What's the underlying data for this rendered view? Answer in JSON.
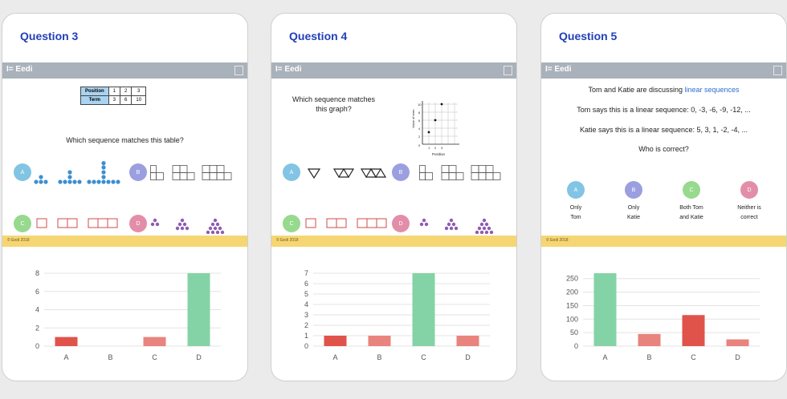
{
  "brand": "Eedi",
  "footer": "© Eedi 2018",
  "cards": [
    {
      "title": "Question 3",
      "table": {
        "row1_label": "Position",
        "row1": [
          "1",
          "2",
          "3"
        ],
        "row2_label": "Term",
        "row2": [
          "3",
          "6",
          "10"
        ]
      },
      "question": "Which sequence matches this table?",
      "options": [
        "A",
        "B",
        "C",
        "D"
      ]
    },
    {
      "title": "Question 4",
      "question_line1": "Which sequence matches",
      "question_line2": "this graph?",
      "graph": {
        "ylabel": "Value of term",
        "xlabel": "Position",
        "yticks": [
          "10",
          "8",
          "6",
          "4",
          "2",
          "0"
        ],
        "xticks": [
          "1",
          "2",
          "3"
        ]
      },
      "options": [
        "A",
        "B",
        "C",
        "D"
      ]
    },
    {
      "title": "Question 5",
      "intro_prefix": "Tom and Katie are discussing ",
      "intro_link": "linear sequences",
      "tom": "Tom says this is a linear sequence: 0, -3, -6, -9, -12, ...",
      "katie": "Katie says this is a linear sequence: 5, 3, 1, -2, -4, ...",
      "question": "Who is correct?",
      "options": [
        "A",
        "B",
        "C",
        "D"
      ],
      "answers": [
        {
          "l1": "Only",
          "l2": "Tom"
        },
        {
          "l1": "Only",
          "l2": "Katie"
        },
        {
          "l1": "Both Tom",
          "l2": "and Katie"
        },
        {
          "l1": "Neither is",
          "l2": "correct"
        }
      ]
    }
  ],
  "chart_data": [
    {
      "type": "bar",
      "categories": [
        "A",
        "B",
        "C",
        "D"
      ],
      "values": [
        1,
        0,
        1,
        8
      ],
      "yticks": [
        0,
        2,
        4,
        6,
        8
      ],
      "ylim": [
        0,
        8
      ],
      "colors": [
        "#e0534a",
        "#e0534a",
        "#e9837d",
        "#84d3a6"
      ],
      "grid": true
    },
    {
      "type": "bar",
      "categories": [
        "A",
        "B",
        "C",
        "D"
      ],
      "values": [
        1,
        1,
        7,
        1
      ],
      "yticks": [
        0,
        1,
        2,
        3,
        4,
        5,
        6,
        7
      ],
      "ylim": [
        0,
        7
      ],
      "colors": [
        "#e0534a",
        "#e9837d",
        "#84d3a6",
        "#e9837d"
      ],
      "grid": true
    },
    {
      "type": "bar",
      "categories": [
        "A",
        "B",
        "C",
        "D"
      ],
      "values": [
        270,
        45,
        115,
        25
      ],
      "yticks": [
        0,
        50,
        100,
        150,
        200,
        250
      ],
      "ylim": [
        0,
        270
      ],
      "colors": [
        "#84d3a6",
        "#e9837d",
        "#e0534a",
        "#e9837d"
      ],
      "grid": true
    }
  ]
}
